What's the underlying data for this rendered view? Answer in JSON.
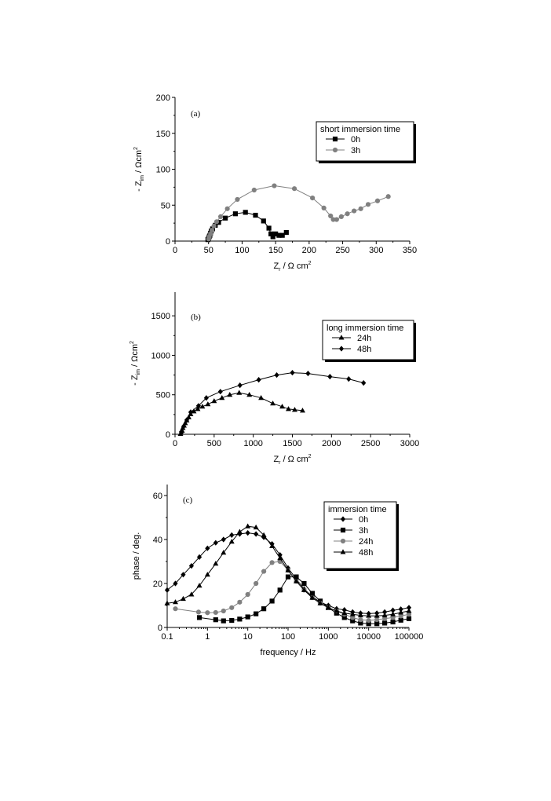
{
  "chart_data": [
    {
      "type": "scatter",
      "panel_label": "(a)",
      "xlabel": {
        "main": "Z",
        "sub": "r",
        "rest": " / Ω cm",
        "sup": "2"
      },
      "ylabel": {
        "pre": "- Z",
        "sub": "im",
        "rest": " / Ωcm",
        "sup": "2"
      },
      "xlim": [
        0,
        350
      ],
      "ylim": [
        0,
        200
      ],
      "xticks": [
        0,
        50,
        100,
        150,
        200,
        250,
        300,
        350
      ],
      "yticks": [
        0,
        50,
        100,
        150,
        200
      ],
      "xtick_labels": [
        "0",
        "50",
        "100",
        "150",
        "200",
        "250",
        "300",
        "350"
      ],
      "ytick_labels": [
        "0",
        "50",
        "100",
        "150",
        "200"
      ],
      "legend_title": "short immersion time",
      "series": [
        {
          "name": "0h",
          "marker": "square",
          "color": "#000000",
          "x": [
            49,
            50,
            51,
            52,
            53,
            54,
            56,
            60,
            65,
            75,
            90,
            105,
            120,
            132,
            140,
            143,
            146,
            150,
            155,
            160,
            166
          ],
          "y": [
            2,
            4,
            6,
            8,
            11,
            14,
            17,
            22,
            26,
            32,
            38,
            40,
            36,
            28,
            18,
            10,
            6,
            10,
            8,
            8,
            12
          ]
        },
        {
          "name": "3h",
          "marker": "circle",
          "color": "#808080",
          "x": [
            50,
            51,
            53,
            55,
            58,
            62,
            68,
            78,
            93,
            118,
            148,
            178,
            205,
            222,
            232,
            236,
            241,
            248,
            257,
            267,
            277,
            288,
            302,
            318
          ],
          "y": [
            3,
            6,
            10,
            15,
            21,
            27,
            34,
            45,
            58,
            71,
            77,
            73,
            60,
            46,
            35,
            30,
            30,
            34,
            38,
            42,
            45,
            51,
            56,
            62
          ]
        }
      ]
    },
    {
      "type": "scatter",
      "panel_label": "(b)",
      "xlabel": {
        "main": "Z",
        "sub": "r",
        "rest": " / Ω cm",
        "sup": "2"
      },
      "ylabel": {
        "pre": "- Z",
        "sub": "im",
        "rest": " / Ωcm",
        "sup": "2"
      },
      "xlim": [
        0,
        3000
      ],
      "ylim": [
        0,
        1800
      ],
      "xticks": [
        0,
        500,
        1000,
        1500,
        2000,
        2500,
        3000
      ],
      "yticks": [
        0,
        500,
        1000,
        1500
      ],
      "xtick_labels": [
        "0",
        "500",
        "1000",
        "1500",
        "2000",
        "2500",
        "3000"
      ],
      "ytick_labels": [
        "0",
        "500",
        "1000",
        "1500"
      ],
      "legend_title": "long immersion time",
      "series": [
        {
          "name": "24h",
          "marker": "triangle",
          "color": "#000000",
          "x": [
            70,
            80,
            90,
            100,
            115,
            130,
            150,
            175,
            200,
            240,
            290,
            350,
            420,
            500,
            600,
            700,
            820,
            950,
            1100,
            1250,
            1370,
            1450,
            1530,
            1630
          ],
          "y": [
            5,
            20,
            45,
            80,
            110,
            140,
            175,
            215,
            255,
            290,
            320,
            350,
            380,
            420,
            460,
            500,
            525,
            500,
            460,
            390,
            350,
            320,
            310,
            300
          ]
        },
        {
          "name": "48h",
          "marker": "diamond",
          "color": "#000000",
          "x": [
            80,
            110,
            150,
            200,
            300,
            400,
            580,
            830,
            1070,
            1300,
            1500,
            1700,
            1980,
            2220,
            2410
          ],
          "y": [
            30,
            100,
            180,
            280,
            360,
            460,
            540,
            620,
            690,
            750,
            780,
            770,
            730,
            700,
            650
          ]
        }
      ]
    },
    {
      "type": "line",
      "x_scale": "log",
      "panel_label": "(c)",
      "xlabel": {
        "main": "frequency / Hz"
      },
      "ylabel": {
        "pre": "phase / deg."
      },
      "xlim": [
        0.1,
        100000
      ],
      "ylim": [
        0,
        65
      ],
      "xticks": [
        0.1,
        1,
        10,
        100,
        1000,
        10000,
        100000
      ],
      "yticks": [
        0,
        20,
        40,
        60
      ],
      "xtick_labels": [
        "0.1",
        "1",
        "10",
        "100",
        "1000",
        "10000",
        "100000"
      ],
      "ytick_labels": [
        "0",
        "20",
        "40",
        "60"
      ],
      "legend_title": "immersion time",
      "series": [
        {
          "name": "0h",
          "marker": "diamond",
          "color": "#000000",
          "x": [
            0.1,
            0.16,
            0.25,
            0.4,
            0.63,
            1,
            1.6,
            2.5,
            4,
            6.3,
            10,
            16,
            25,
            40,
            63,
            100,
            160,
            250,
            400,
            630,
            1000,
            1600,
            2500,
            4000,
            6300,
            10000,
            16000,
            25000,
            40000,
            63000,
            100000
          ],
          "y": [
            17,
            20,
            24,
            28,
            32,
            36,
            38.5,
            40,
            42,
            42.5,
            43,
            42.5,
            41,
            38,
            33,
            27,
            22,
            17.5,
            14,
            11.5,
            10,
            8.5,
            8,
            7,
            6.5,
            6.3,
            6.5,
            7,
            7.8,
            8.3,
            9
          ]
        },
        {
          "name": "3h",
          "marker": "square",
          "color": "#000000",
          "x": [
            0.63,
            1.6,
            2.5,
            4,
            6.3,
            10,
            16,
            25,
            40,
            63,
            100,
            160,
            250,
            400,
            630,
            1000,
            1600,
            2500,
            4000,
            6300,
            10000,
            16000,
            25000,
            40000,
            63000,
            100000
          ],
          "y": [
            4.5,
            3.5,
            3,
            3.2,
            3.8,
            4.8,
            6.2,
            8.5,
            12,
            17,
            23,
            23,
            20,
            15.5,
            12,
            9,
            6.5,
            4.5,
            3,
            2,
            1.7,
            1.7,
            2,
            2.5,
            3.3,
            4
          ]
        },
        {
          "name": "24h",
          "marker": "circle",
          "color": "#808080",
          "x": [
            0.16,
            0.6,
            1,
            1.6,
            2.5,
            4,
            6.3,
            10,
            16,
            25,
            40,
            63,
            100,
            160,
            250,
            400,
            630,
            1000,
            1600,
            2500,
            4000,
            6300,
            10000,
            16000,
            25000,
            40000,
            63000,
            100000
          ],
          "y": [
            8.5,
            7,
            6.7,
            6.8,
            7.5,
            9,
            11.5,
            15,
            20,
            25.5,
            29.5,
            30,
            26,
            21,
            17,
            13.5,
            11,
            9,
            7.5,
            6,
            4.5,
            3.5,
            3.2,
            3.5,
            4,
            4.5,
            5.2,
            6
          ]
        },
        {
          "name": "48h",
          "marker": "triangle",
          "color": "#000000",
          "x": [
            0.1,
            0.16,
            0.25,
            0.4,
            0.63,
            1,
            1.6,
            2.5,
            4,
            6.3,
            10,
            16,
            25,
            40,
            63,
            100,
            160,
            250,
            400,
            630,
            1000,
            1600,
            2500,
            4000,
            6300,
            10000,
            16000,
            25000,
            40000,
            63000,
            100000
          ],
          "y": [
            11,
            11.5,
            13,
            15,
            19,
            24,
            29,
            34,
            39,
            43.5,
            46,
            45.5,
            42,
            37,
            31.5,
            26,
            21,
            17,
            13.5,
            11,
            9,
            7.5,
            6.5,
            6,
            5.5,
            5.3,
            5.3,
            5.5,
            6,
            6.8,
            7.5
          ]
        }
      ]
    }
  ]
}
